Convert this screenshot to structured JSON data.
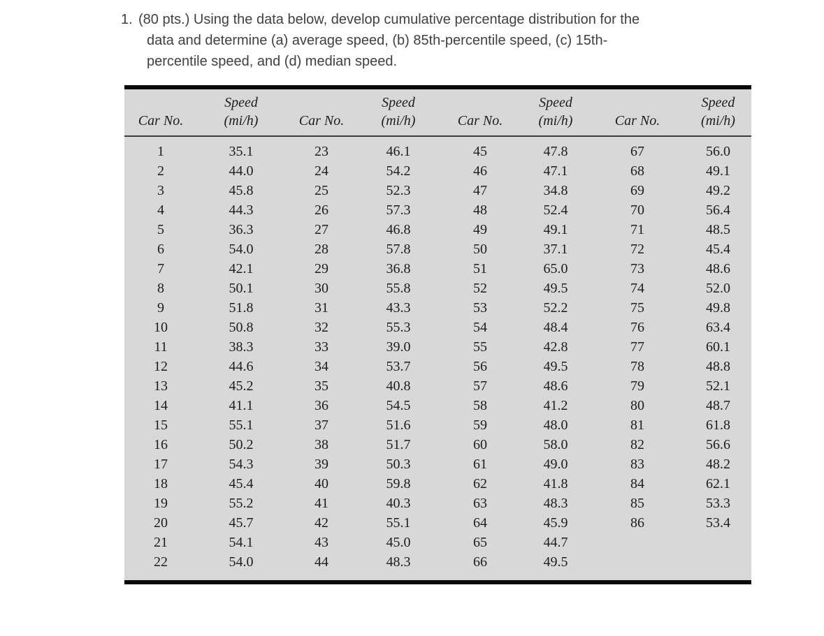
{
  "problem": {
    "number": "1.",
    "lines": [
      "(80 pts.) Using the data below, develop cumulative percentage distribution for the",
      "data and determine (a) average speed, (b) 85th-percentile speed, (c) 15th-",
      "percentile speed, and (d) median speed."
    ]
  },
  "table": {
    "headers": {
      "car": "Car No.",
      "speed": "Speed",
      "unit": "(mi/h)"
    },
    "groups": 4,
    "rows_per_group": 22,
    "background_color": "#d8d8d8",
    "cars": [
      {
        "no": 1,
        "speed": "35.1"
      },
      {
        "no": 2,
        "speed": "44.0"
      },
      {
        "no": 3,
        "speed": "45.8"
      },
      {
        "no": 4,
        "speed": "44.3"
      },
      {
        "no": 5,
        "speed": "36.3"
      },
      {
        "no": 6,
        "speed": "54.0"
      },
      {
        "no": 7,
        "speed": "42.1"
      },
      {
        "no": 8,
        "speed": "50.1"
      },
      {
        "no": 9,
        "speed": "51.8"
      },
      {
        "no": 10,
        "speed": "50.8"
      },
      {
        "no": 11,
        "speed": "38.3"
      },
      {
        "no": 12,
        "speed": "44.6"
      },
      {
        "no": 13,
        "speed": "45.2"
      },
      {
        "no": 14,
        "speed": "41.1"
      },
      {
        "no": 15,
        "speed": "55.1"
      },
      {
        "no": 16,
        "speed": "50.2"
      },
      {
        "no": 17,
        "speed": "54.3"
      },
      {
        "no": 18,
        "speed": "45.4"
      },
      {
        "no": 19,
        "speed": "55.2"
      },
      {
        "no": 20,
        "speed": "45.7"
      },
      {
        "no": 21,
        "speed": "54.1"
      },
      {
        "no": 22,
        "speed": "54.0"
      },
      {
        "no": 23,
        "speed": "46.1"
      },
      {
        "no": 24,
        "speed": "54.2"
      },
      {
        "no": 25,
        "speed": "52.3"
      },
      {
        "no": 26,
        "speed": "57.3"
      },
      {
        "no": 27,
        "speed": "46.8"
      },
      {
        "no": 28,
        "speed": "57.8"
      },
      {
        "no": 29,
        "speed": "36.8"
      },
      {
        "no": 30,
        "speed": "55.8"
      },
      {
        "no": 31,
        "speed": "43.3"
      },
      {
        "no": 32,
        "speed": "55.3"
      },
      {
        "no": 33,
        "speed": "39.0"
      },
      {
        "no": 34,
        "speed": "53.7"
      },
      {
        "no": 35,
        "speed": "40.8"
      },
      {
        "no": 36,
        "speed": "54.5"
      },
      {
        "no": 37,
        "speed": "51.6"
      },
      {
        "no": 38,
        "speed": "51.7"
      },
      {
        "no": 39,
        "speed": "50.3"
      },
      {
        "no": 40,
        "speed": "59.8"
      },
      {
        "no": 41,
        "speed": "40.3"
      },
      {
        "no": 42,
        "speed": "55.1"
      },
      {
        "no": 43,
        "speed": "45.0"
      },
      {
        "no": 44,
        "speed": "48.3"
      },
      {
        "no": 45,
        "speed": "47.8"
      },
      {
        "no": 46,
        "speed": "47.1"
      },
      {
        "no": 47,
        "speed": "34.8"
      },
      {
        "no": 48,
        "speed": "52.4"
      },
      {
        "no": 49,
        "speed": "49.1"
      },
      {
        "no": 50,
        "speed": "37.1"
      },
      {
        "no": 51,
        "speed": "65.0"
      },
      {
        "no": 52,
        "speed": "49.5"
      },
      {
        "no": 53,
        "speed": "52.2"
      },
      {
        "no": 54,
        "speed": "48.4"
      },
      {
        "no": 55,
        "speed": "42.8"
      },
      {
        "no": 56,
        "speed": "49.5"
      },
      {
        "no": 57,
        "speed": "48.6"
      },
      {
        "no": 58,
        "speed": "41.2"
      },
      {
        "no": 59,
        "speed": "48.0"
      },
      {
        "no": 60,
        "speed": "58.0"
      },
      {
        "no": 61,
        "speed": "49.0"
      },
      {
        "no": 62,
        "speed": "41.8"
      },
      {
        "no": 63,
        "speed": "48.3"
      },
      {
        "no": 64,
        "speed": "45.9"
      },
      {
        "no": 65,
        "speed": "44.7"
      },
      {
        "no": 66,
        "speed": "49.5"
      },
      {
        "no": 67,
        "speed": "56.0"
      },
      {
        "no": 68,
        "speed": "49.1"
      },
      {
        "no": 69,
        "speed": "49.2"
      },
      {
        "no": 70,
        "speed": "56.4"
      },
      {
        "no": 71,
        "speed": "48.5"
      },
      {
        "no": 72,
        "speed": "45.4"
      },
      {
        "no": 73,
        "speed": "48.6"
      },
      {
        "no": 74,
        "speed": "52.0"
      },
      {
        "no": 75,
        "speed": "49.8"
      },
      {
        "no": 76,
        "speed": "63.4"
      },
      {
        "no": 77,
        "speed": "60.1"
      },
      {
        "no": 78,
        "speed": "48.8"
      },
      {
        "no": 79,
        "speed": "52.1"
      },
      {
        "no": 80,
        "speed": "48.7"
      },
      {
        "no": 81,
        "speed": "61.8"
      },
      {
        "no": 82,
        "speed": "56.6"
      },
      {
        "no": 83,
        "speed": "48.2"
      },
      {
        "no": 84,
        "speed": "62.1"
      },
      {
        "no": 85,
        "speed": "53.3"
      },
      {
        "no": 86,
        "speed": "53.4"
      }
    ]
  }
}
